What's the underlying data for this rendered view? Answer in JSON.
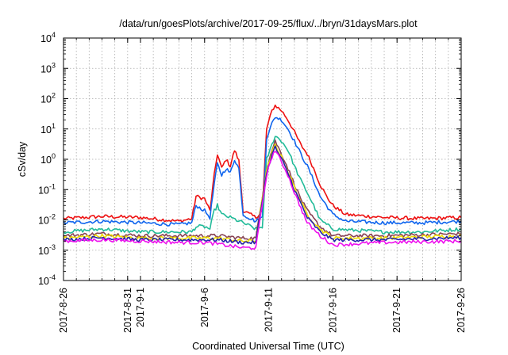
{
  "chart_data": {
    "type": "line",
    "title": "/data/run/goesPlots/archive/2017-09-25/flux/../bryn/31daysMars.plot",
    "xlabel": "Coordinated Universal Time (UTC)",
    "ylabel": "cSv/day",
    "yscale": "log",
    "ylim": [
      0.0001,
      10000
    ],
    "xlim": [
      "2017-08-26",
      "2017-09-26"
    ],
    "grid": true,
    "legend": "none",
    "y_ticks": [
      {
        "value": 0.0001,
        "base": "10",
        "exp": "-4"
      },
      {
        "value": 0.001,
        "base": "10",
        "exp": "-3"
      },
      {
        "value": 0.01,
        "base": "10",
        "exp": "-2"
      },
      {
        "value": 0.1,
        "base": "10",
        "exp": "-1"
      },
      {
        "value": 1,
        "base": "10",
        "exp": "0"
      },
      {
        "value": 10,
        "base": "10",
        "exp": "1"
      },
      {
        "value": 100,
        "base": "10",
        "exp": "2"
      },
      {
        "value": 1000,
        "base": "10",
        "exp": "3"
      },
      {
        "value": 10000,
        "base": "10",
        "exp": "4"
      }
    ],
    "x_ticks": [
      {
        "date": "2017-08-26",
        "label": "2017-8-26"
      },
      {
        "date": "2017-08-31",
        "label": "2017-8-31"
      },
      {
        "date": "2017-09-01",
        "label": "2017-9-1"
      },
      {
        "date": "2017-09-06",
        "label": "2017-9-6"
      },
      {
        "date": "2017-09-11",
        "label": "2017-9-11"
      },
      {
        "date": "2017-09-16",
        "label": "2017-9-16"
      },
      {
        "date": "2017-09-21",
        "label": "2017-9-21"
      },
      {
        "date": "2017-09-26",
        "label": "2017-9-26"
      }
    ],
    "series": [
      {
        "color": "#ee1111",
        "points": [
          [
            "2017-08-26",
            0.011
          ],
          [
            "2017-08-29",
            0.013
          ],
          [
            "2017-09-01",
            0.012
          ],
          [
            "2017-09-04",
            0.009
          ],
          [
            "2017-09-05",
            0.011
          ],
          [
            "2017-09-05 08:00",
            0.06
          ],
          [
            "2017-09-06",
            0.05
          ],
          [
            "2017-09-06 10:00",
            0.02
          ],
          [
            "2017-09-06 18:00",
            0.3
          ],
          [
            "2017-09-07",
            1.5
          ],
          [
            "2017-09-07 08:00",
            0.5
          ],
          [
            "2017-09-07 16:00",
            1.0
          ],
          [
            "2017-09-08",
            0.6
          ],
          [
            "2017-09-08 08:00",
            2.0
          ],
          [
            "2017-09-08 16:00",
            0.9
          ],
          [
            "2017-09-09",
            0.02
          ],
          [
            "2017-09-10",
            0.012
          ],
          [
            "2017-09-10 12:00",
            0.02
          ],
          [
            "2017-09-10 20:00",
            10
          ],
          [
            "2017-09-11 06:00",
            40
          ],
          [
            "2017-09-11 12:00",
            60
          ],
          [
            "2017-09-12",
            40
          ],
          [
            "2017-09-12 12:00",
            20
          ],
          [
            "2017-09-13",
            8
          ],
          [
            "2017-09-13 12:00",
            3
          ],
          [
            "2017-09-14",
            1.5
          ],
          [
            "2017-09-14 12:00",
            0.5
          ],
          [
            "2017-09-15",
            0.15
          ],
          [
            "2017-09-15 12:00",
            0.06
          ],
          [
            "2017-09-16",
            0.03
          ],
          [
            "2017-09-17",
            0.015
          ],
          [
            "2017-09-20",
            0.012
          ],
          [
            "2017-09-23",
            0.011
          ],
          [
            "2017-09-26",
            0.012
          ]
        ]
      },
      {
        "color": "#1166ee",
        "points": [
          [
            "2017-08-26",
            0.008
          ],
          [
            "2017-08-29",
            0.009
          ],
          [
            "2017-09-01",
            0.008
          ],
          [
            "2017-09-04",
            0.007
          ],
          [
            "2017-09-05",
            0.008
          ],
          [
            "2017-09-05 08:00",
            0.03
          ],
          [
            "2017-09-06",
            0.02
          ],
          [
            "2017-09-06 10:00",
            0.012
          ],
          [
            "2017-09-06 18:00",
            0.15
          ],
          [
            "2017-09-07",
            0.7
          ],
          [
            "2017-09-07 08:00",
            0.3
          ],
          [
            "2017-09-07 16:00",
            0.5
          ],
          [
            "2017-09-08",
            0.35
          ],
          [
            "2017-09-08 08:00",
            1.0
          ],
          [
            "2017-09-08 16:00",
            0.5
          ],
          [
            "2017-09-09",
            0.015
          ],
          [
            "2017-09-10",
            0.009
          ],
          [
            "2017-09-10 12:00",
            0.012
          ],
          [
            "2017-09-10 20:00",
            5
          ],
          [
            "2017-09-11 06:00",
            15
          ],
          [
            "2017-09-11 12:00",
            25
          ],
          [
            "2017-09-12",
            20
          ],
          [
            "2017-09-12 12:00",
            10
          ],
          [
            "2017-09-13",
            4
          ],
          [
            "2017-09-13 12:00",
            1.5
          ],
          [
            "2017-09-14",
            0.6
          ],
          [
            "2017-09-14 12:00",
            0.2
          ],
          [
            "2017-09-15",
            0.06
          ],
          [
            "2017-09-15 12:00",
            0.03
          ],
          [
            "2017-09-16",
            0.015
          ],
          [
            "2017-09-17",
            0.009
          ],
          [
            "2017-09-20",
            0.008
          ],
          [
            "2017-09-23",
            0.008
          ],
          [
            "2017-09-26",
            0.009
          ]
        ]
      },
      {
        "color": "#22bb99",
        "points": [
          [
            "2017-08-26",
            0.004
          ],
          [
            "2017-08-29",
            0.005
          ],
          [
            "2017-09-01",
            0.004
          ],
          [
            "2017-09-04",
            0.004
          ],
          [
            "2017-09-05",
            0.004
          ],
          [
            "2017-09-05 08:00",
            0.006
          ],
          [
            "2017-09-06",
            0.006
          ],
          [
            "2017-09-06 10:00",
            0.005
          ],
          [
            "2017-09-06 18:00",
            0.02
          ],
          [
            "2017-09-07",
            0.03
          ],
          [
            "2017-09-07 08:00",
            0.015
          ],
          [
            "2017-09-08",
            0.012
          ],
          [
            "2017-09-09",
            0.008
          ],
          [
            "2017-09-10",
            0.005
          ],
          [
            "2017-09-10 12:00",
            0.006
          ],
          [
            "2017-09-10 20:00",
            1
          ],
          [
            "2017-09-11 06:00",
            3
          ],
          [
            "2017-09-11 12:00",
            6
          ],
          [
            "2017-09-12",
            4
          ],
          [
            "2017-09-12 12:00",
            2
          ],
          [
            "2017-09-13",
            0.6
          ],
          [
            "2017-09-13 12:00",
            0.2
          ],
          [
            "2017-09-14",
            0.08
          ],
          [
            "2017-09-14 12:00",
            0.03
          ],
          [
            "2017-09-15",
            0.01
          ],
          [
            "2017-09-16",
            0.005
          ],
          [
            "2017-09-20",
            0.004
          ],
          [
            "2017-09-23",
            0.004
          ],
          [
            "2017-09-26",
            0.005
          ]
        ]
      },
      {
        "color": "#884455",
        "points": [
          [
            "2017-08-26",
            0.003
          ],
          [
            "2017-08-29",
            0.0035
          ],
          [
            "2017-09-01",
            0.003
          ],
          [
            "2017-09-04",
            0.003
          ],
          [
            "2017-09-06",
            0.003
          ],
          [
            "2017-09-07",
            0.003
          ],
          [
            "2017-09-09",
            0.0025
          ],
          [
            "2017-09-10",
            0.0025
          ],
          [
            "2017-09-10 20:00",
            0.5
          ],
          [
            "2017-09-11 06:00",
            2
          ],
          [
            "2017-09-11 12:00",
            4
          ],
          [
            "2017-09-12",
            1.5
          ],
          [
            "2017-09-12 12:00",
            0.5
          ],
          [
            "2017-09-13",
            0.15
          ],
          [
            "2017-09-13 12:00",
            0.05
          ],
          [
            "2017-09-14",
            0.02
          ],
          [
            "2017-09-15",
            0.006
          ],
          [
            "2017-09-16",
            0.003
          ],
          [
            "2017-09-20",
            0.003
          ],
          [
            "2017-09-26",
            0.0035
          ]
        ]
      },
      {
        "color": "#eedd00",
        "points": [
          [
            "2017-08-26",
            0.0025
          ],
          [
            "2017-08-29",
            0.003
          ],
          [
            "2017-09-01",
            0.0025
          ],
          [
            "2017-09-04",
            0.0025
          ],
          [
            "2017-09-06",
            0.0025
          ],
          [
            "2017-09-07",
            0.0025
          ],
          [
            "2017-09-09",
            0.002
          ],
          [
            "2017-09-10",
            0.002
          ],
          [
            "2017-09-10 20:00",
            0.4
          ],
          [
            "2017-09-11 06:00",
            1.6
          ],
          [
            "2017-09-11 12:00",
            3
          ],
          [
            "2017-09-12",
            1.2
          ],
          [
            "2017-09-12 12:00",
            0.4
          ],
          [
            "2017-09-13",
            0.12
          ],
          [
            "2017-09-13 12:00",
            0.04
          ],
          [
            "2017-09-14",
            0.015
          ],
          [
            "2017-09-15",
            0.005
          ],
          [
            "2017-09-16",
            0.0025
          ],
          [
            "2017-09-20",
            0.0025
          ],
          [
            "2017-09-26",
            0.003
          ]
        ]
      },
      {
        "color": "#2222aa",
        "points": [
          [
            "2017-08-26",
            0.0022
          ],
          [
            "2017-08-29",
            0.0026
          ],
          [
            "2017-09-01",
            0.0022
          ],
          [
            "2017-09-04",
            0.0022
          ],
          [
            "2017-09-06",
            0.0022
          ],
          [
            "2017-09-07",
            0.0022
          ],
          [
            "2017-09-09",
            0.0018
          ],
          [
            "2017-09-10",
            0.0018
          ],
          [
            "2017-09-10 20:00",
            0.35
          ],
          [
            "2017-09-11 06:00",
            1.4
          ],
          [
            "2017-09-11 12:00",
            2.5
          ],
          [
            "2017-09-12",
            1.0
          ],
          [
            "2017-09-12 12:00",
            0.35
          ],
          [
            "2017-09-13",
            0.1
          ],
          [
            "2017-09-13 12:00",
            0.035
          ],
          [
            "2017-09-14",
            0.012
          ],
          [
            "2017-09-15",
            0.004
          ],
          [
            "2017-09-16",
            0.0022
          ],
          [
            "2017-09-20",
            0.0022
          ],
          [
            "2017-09-26",
            0.0026
          ]
        ]
      },
      {
        "color": "#ee11ee",
        "points": [
          [
            "2017-08-26",
            0.002
          ],
          [
            "2017-08-29",
            0.0022
          ],
          [
            "2017-09-01",
            0.002
          ],
          [
            "2017-09-04",
            0.0018
          ],
          [
            "2017-09-06",
            0.0018
          ],
          [
            "2017-09-07",
            0.0016
          ],
          [
            "2017-09-09",
            0.0012
          ],
          [
            "2017-09-10",
            0.0012
          ],
          [
            "2017-09-10 20:00",
            0.3
          ],
          [
            "2017-09-11 06:00",
            1.2
          ],
          [
            "2017-09-11 12:00",
            2
          ],
          [
            "2017-09-12",
            0.8
          ],
          [
            "2017-09-12 12:00",
            0.3
          ],
          [
            "2017-09-13",
            0.08
          ],
          [
            "2017-09-13 12:00",
            0.025
          ],
          [
            "2017-09-14",
            0.008
          ],
          [
            "2017-09-15",
            0.003
          ],
          [
            "2017-09-16",
            0.0015
          ],
          [
            "2017-09-20",
            0.0018
          ],
          [
            "2017-09-26",
            0.002
          ]
        ]
      }
    ]
  }
}
